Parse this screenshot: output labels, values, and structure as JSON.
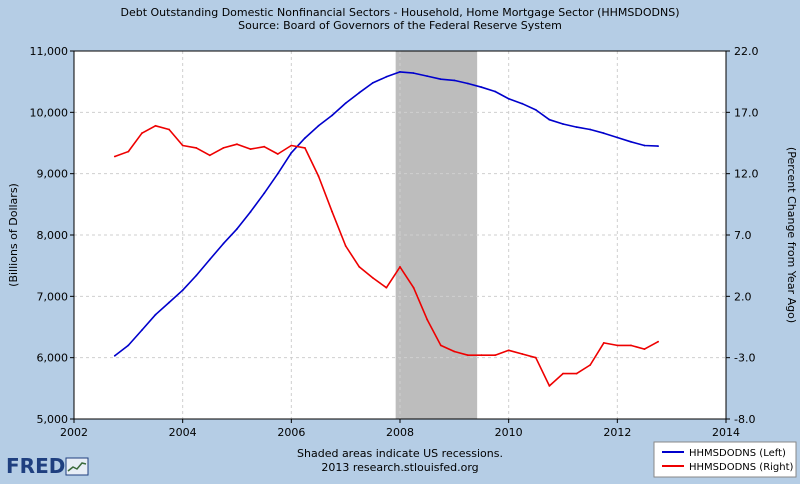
{
  "chart_data": {
    "type": "line",
    "title": "Debt Outstanding Domestic Nonfinancial Sectors - Household, Home Mortgage Sector (HHMSDODNS)",
    "subtitle": "Source: Board of Governors of the Federal Reserve System",
    "xlabel": "",
    "ylabel_left": "(Billions of Dollars)",
    "ylabel_right": "(Percent Change from Year Ago)",
    "xlim": [
      2002,
      2014
    ],
    "ylim_left": [
      5000,
      11000
    ],
    "ylim_right": [
      -8.0,
      22.0
    ],
    "x_ticks": [
      "2002",
      "2004",
      "2006",
      "2008",
      "2010",
      "2012",
      "2014"
    ],
    "y_ticks_left": [
      "5,000",
      "6,000",
      "7,000",
      "8,000",
      "9,000",
      "10,000",
      "11,000"
    ],
    "y_ticks_right": [
      "-8.0",
      "-3.0",
      "2.0",
      "7.0",
      "12.0",
      "17.0",
      "22.0"
    ],
    "grid": true,
    "recession": [
      2007.92,
      2009.42
    ],
    "series": [
      {
        "name": "HHMSDODNS (Left)",
        "axis": "left",
        "color": "#0000cc",
        "x": [
          2002.75,
          2003.0,
          2003.25,
          2003.5,
          2003.75,
          2004.0,
          2004.25,
          2004.5,
          2004.75,
          2005.0,
          2005.25,
          2005.5,
          2005.75,
          2006.0,
          2006.25,
          2006.5,
          2006.75,
          2007.0,
          2007.25,
          2007.5,
          2007.75,
          2008.0,
          2008.25,
          2008.5,
          2008.75,
          2009.0,
          2009.25,
          2009.5,
          2009.75,
          2010.0,
          2010.25,
          2010.5,
          2010.75,
          2011.0,
          2011.25,
          2011.5,
          2011.75,
          2012.0,
          2012.25,
          2012.5,
          2012.75
        ],
        "values": [
          6030,
          6200,
          6450,
          6700,
          6900,
          7100,
          7340,
          7600,
          7860,
          8100,
          8380,
          8680,
          9000,
          9340,
          9580,
          9780,
          9950,
          10150,
          10320,
          10480,
          10580,
          10660,
          10640,
          10590,
          10540,
          10520,
          10470,
          10410,
          10340,
          10220,
          10140,
          10040,
          9880,
          9810,
          9760,
          9720,
          9660,
          9590,
          9520,
          9460,
          9450
        ]
      },
      {
        "name": "HHMSDODNS (Right)",
        "axis": "right",
        "color": "#ee0000",
        "x": [
          2002.75,
          2003.0,
          2003.25,
          2003.5,
          2003.75,
          2004.0,
          2004.25,
          2004.5,
          2004.75,
          2005.0,
          2005.25,
          2005.5,
          2005.75,
          2006.0,
          2006.25,
          2006.5,
          2006.75,
          2007.0,
          2007.25,
          2007.5,
          2007.75,
          2008.0,
          2008.25,
          2008.5,
          2008.75,
          2009.0,
          2009.25,
          2009.5,
          2009.75,
          2010.0,
          2010.25,
          2010.5,
          2010.75,
          2011.0,
          2011.25,
          2011.5,
          2011.75,
          2012.0,
          2012.25,
          2012.5,
          2012.75
        ],
        "values": [
          13.4,
          13.8,
          15.3,
          15.9,
          15.6,
          14.3,
          14.1,
          13.5,
          14.1,
          14.4,
          14.0,
          14.2,
          13.6,
          14.3,
          14.1,
          11.8,
          8.9,
          6.1,
          4.4,
          3.5,
          2.7,
          4.4,
          2.7,
          0.1,
          -2.0,
          -2.5,
          -2.8,
          -2.8,
          -2.8,
          -2.4,
          -2.7,
          -3.0,
          -5.3,
          -4.3,
          -4.3,
          -3.6,
          -1.8,
          -2.0,
          -2.0,
          -2.3,
          -1.7
        ]
      }
    ],
    "legend": {
      "placement": "bottom-right",
      "entries": [
        "HHMSDODNS (Left)",
        "HHMSDODNS (Right)"
      ]
    },
    "footer": {
      "line1": "Shaded areas indicate US recessions.",
      "line2": "2013 research.stlouisfed.org"
    }
  },
  "logo": {
    "text": "FRED"
  }
}
